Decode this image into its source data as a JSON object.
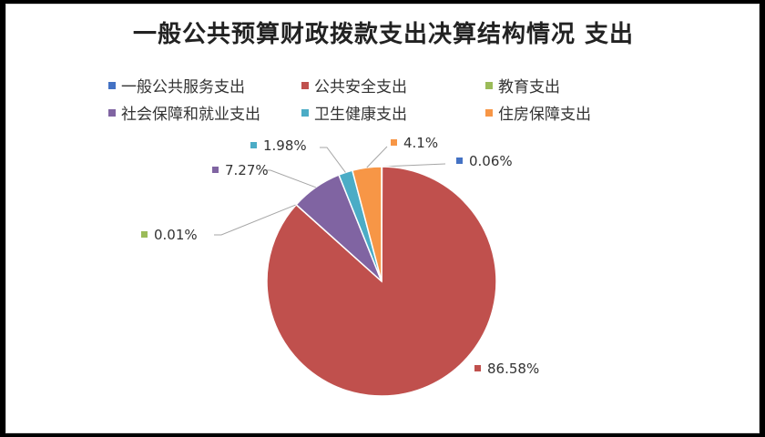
{
  "chart_data": {
    "type": "pie",
    "title": "一般公共预算财政拨款支出决算结构情况 支出",
    "categories": [
      "一般公共服务支出",
      "公共安全支出",
      "教育支出",
      "社会保障和就业支出",
      "卫生健康支出",
      "住房保障支出"
    ],
    "values": [
      0.06,
      86.58,
      0.01,
      7.27,
      1.98,
      4.1
    ],
    "data_labels": [
      "0.06%",
      "86.58%",
      "0.01%",
      "7.27%",
      "1.98%",
      "4.1%"
    ],
    "colors": [
      "#4472C4",
      "#C0504D",
      "#9BBB59",
      "#8064A2",
      "#4BACC6",
      "#F79646"
    ],
    "legend_position": "top",
    "unit": "%"
  }
}
